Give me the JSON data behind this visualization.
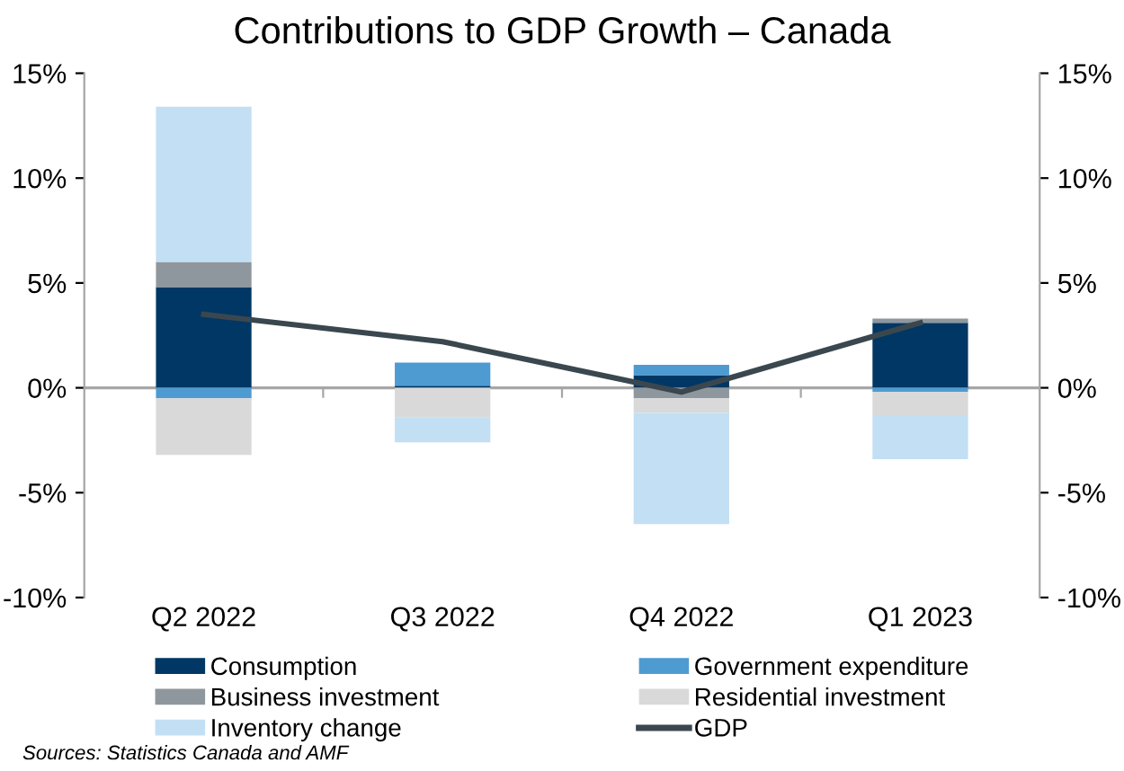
{
  "chart_data": {
    "type": "bar",
    "title": "Contributions to GDP Growth – Canada",
    "categories": [
      "Q2 2022",
      "Q3 2022",
      "Q4 2022",
      "Q1 2023"
    ],
    "stacked": true,
    "series": [
      {
        "name": "Consumption",
        "color": "#003764",
        "values": [
          4.8,
          0.1,
          0.6,
          3.1
        ]
      },
      {
        "name": "Government expenditure",
        "color": "#4e9bd2",
        "values": [
          -0.5,
          1.1,
          0.5,
          -0.2
        ]
      },
      {
        "name": "Business investment",
        "color": "#8f979e",
        "values": [
          1.2,
          0.0,
          -0.5,
          0.2
        ]
      },
      {
        "name": "Residential investment",
        "color": "#d9d9d9",
        "values": [
          -2.7,
          -1.4,
          -0.7,
          -1.1
        ]
      },
      {
        "name": "Inventory change",
        "color": "#c2dff4",
        "values": [
          7.4,
          -1.2,
          -5.3,
          -2.1
        ]
      },
      {
        "name": "GDP",
        "type": "line",
        "color": "#3a474f",
        "values": [
          3.5,
          2.2,
          -0.2,
          3.1
        ]
      }
    ],
    "ylim": [
      -10,
      15
    ],
    "yticks": [
      {
        "value": -10,
        "label": "-10%"
      },
      {
        "value": -5,
        "label": "-5%"
      },
      {
        "value": 0,
        "label": "0%"
      },
      {
        "value": 5,
        "label": "5%"
      },
      {
        "value": 10,
        "label": "10%"
      },
      {
        "value": 15,
        "label": "15%"
      }
    ],
    "y2lim": [
      -10,
      15
    ],
    "y2ticks": [
      {
        "value": -10,
        "label": "-10%"
      },
      {
        "value": -5,
        "label": "-5%"
      },
      {
        "value": 0,
        "label": "0%"
      },
      {
        "value": 5,
        "label": "5%"
      },
      {
        "value": 10,
        "label": "10%"
      },
      {
        "value": 15,
        "label": "15%"
      }
    ],
    "ref_lines": [
      {
        "axis": "y",
        "value": 0,
        "color": "#a6a6a6"
      }
    ],
    "legend": "bottom",
    "grid": false,
    "annotations": [
      "Sources: Statistics Canada and AMF"
    ]
  }
}
